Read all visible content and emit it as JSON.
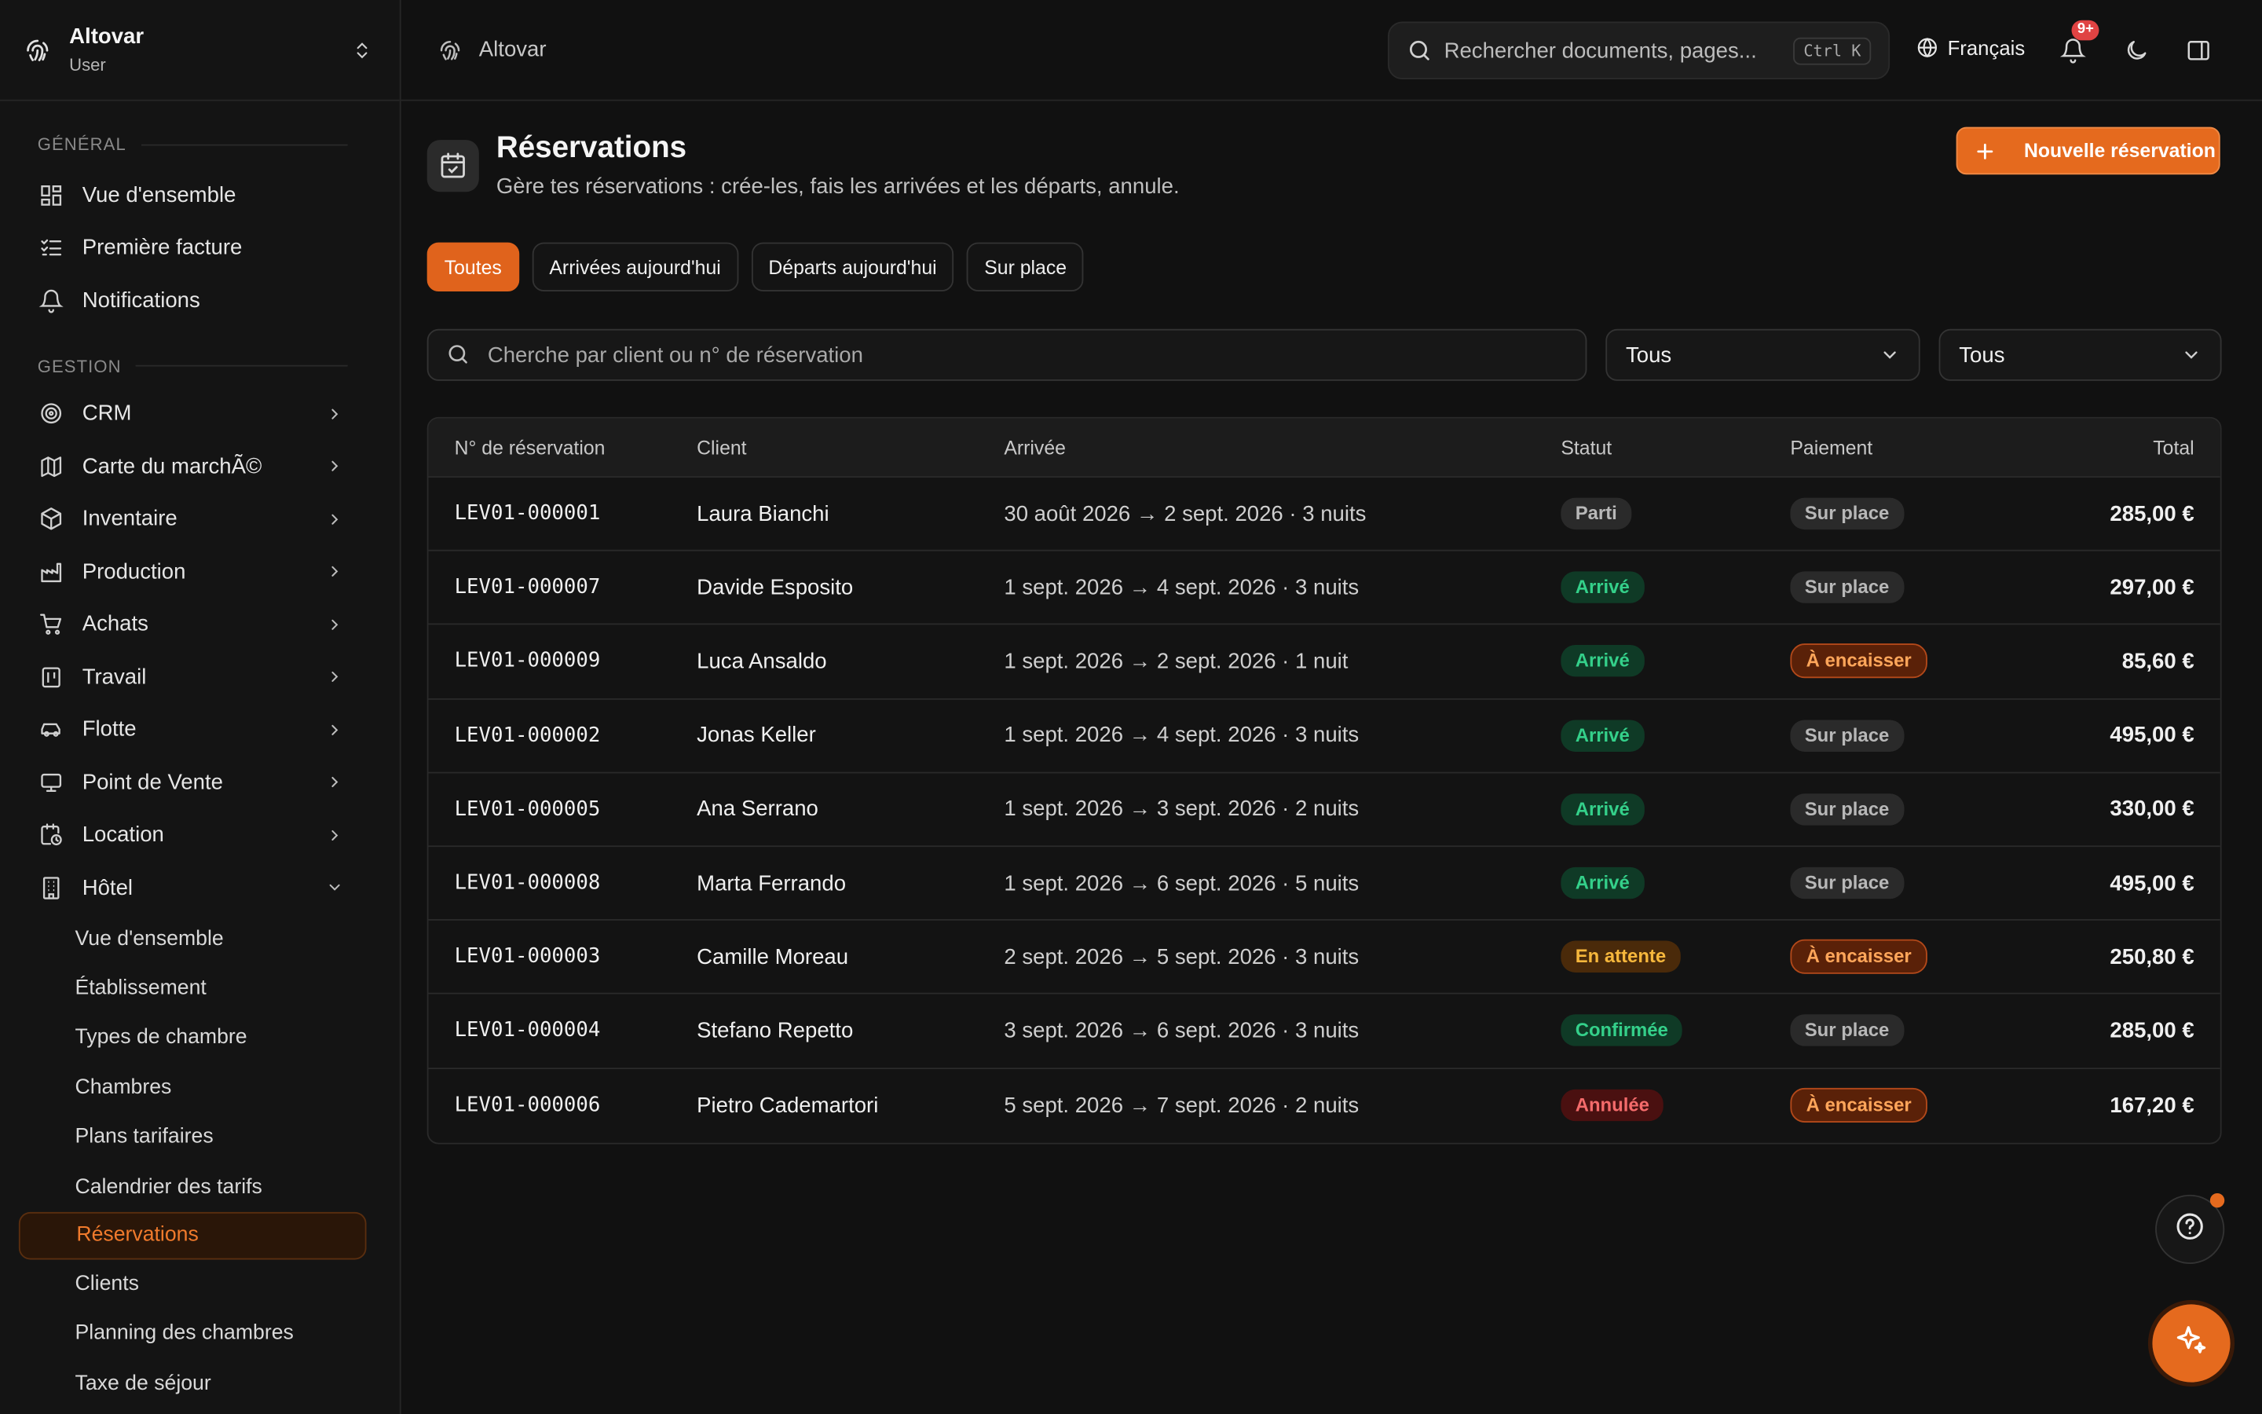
{
  "brand": {
    "name": "Altovar",
    "role": "User"
  },
  "sidebar": {
    "general_label": "GÉNÉRAL",
    "general_items": [
      {
        "label": "Vue d'ensemble",
        "icon": "dashboard-icon"
      },
      {
        "label": "Première facture",
        "icon": "checklist-icon"
      },
      {
        "label": "Notifications",
        "icon": "bell-icon"
      }
    ],
    "gestion_label": "GESTION",
    "gestion_items": [
      {
        "label": "CRM",
        "icon": "target-icon"
      },
      {
        "label": "Carte du marchÃ©",
        "icon": "map-icon"
      },
      {
        "label": "Inventaire",
        "icon": "box-icon"
      },
      {
        "label": "Production",
        "icon": "factory-icon"
      },
      {
        "label": "Achats",
        "icon": "cart-icon"
      },
      {
        "label": "Travail",
        "icon": "calendar-icon"
      },
      {
        "label": "Flotte",
        "icon": "car-icon"
      },
      {
        "label": "Point de Vente",
        "icon": "monitor-icon"
      },
      {
        "label": "Location",
        "icon": "calendar-clock-icon"
      },
      {
        "label": "Hôtel",
        "icon": "building-icon"
      }
    ],
    "hotel_items": [
      "Vue d'ensemble",
      "Établissement",
      "Types de chambre",
      "Chambres",
      "Plans tarifaires",
      "Calendrier des tarifs",
      "Réservations",
      "Clients",
      "Planning des chambres",
      "Taxe de séjour"
    ]
  },
  "topbar": {
    "crumb": "Altovar",
    "search_placeholder": "Rechercher documents, pages...",
    "shortcut": "Ctrl K",
    "language": "Français",
    "notif_count": "9+"
  },
  "page": {
    "title": "Réservations",
    "subtitle": "Gère tes réservations : crée-les, fais les arrivées et les départs, annule.",
    "new_button": "Nouvelle réservation"
  },
  "tabs": [
    "Toutes",
    "Arrivées aujourd'hui",
    "Départs aujourd'hui",
    "Sur place"
  ],
  "filters": {
    "search_placeholder": "Cherche par client ou n° de réservation",
    "status_value": "Tous",
    "payment_value": "Tous"
  },
  "table": {
    "headers": [
      "N° de réservation",
      "Client",
      "Arrivée",
      "Statut",
      "Paiement",
      "Total"
    ],
    "rows": [
      {
        "id": "LEV01-000001",
        "client": "Laura Bianchi",
        "stay": "30 août 2026 → 2 sept. 2026 · 3 nuits",
        "status": "Parti",
        "status_tone": "gray",
        "payment": "Sur place",
        "payment_tone": "gray",
        "total": "285,00 €"
      },
      {
        "id": "LEV01-000007",
        "client": "Davide Esposito",
        "stay": "1 sept. 2026 → 4 sept. 2026 · 3 nuits",
        "status": "Arrivé",
        "status_tone": "green",
        "payment": "Sur place",
        "payment_tone": "gray",
        "total": "297,00 €"
      },
      {
        "id": "LEV01-000009",
        "client": "Luca Ansaldo",
        "stay": "1 sept. 2026 → 2 sept. 2026 · 1 nuit",
        "status": "Arrivé",
        "status_tone": "green",
        "payment": "À encaisser",
        "payment_tone": "orange",
        "total": "85,60 €"
      },
      {
        "id": "LEV01-000002",
        "client": "Jonas Keller",
        "stay": "1 sept. 2026 → 4 sept. 2026 · 3 nuits",
        "status": "Arrivé",
        "status_tone": "green",
        "payment": "Sur place",
        "payment_tone": "gray",
        "total": "495,00 €"
      },
      {
        "id": "LEV01-000005",
        "client": "Ana Serrano",
        "stay": "1 sept. 2026 → 3 sept. 2026 · 2 nuits",
        "status": "Arrivé",
        "status_tone": "green",
        "payment": "Sur place",
        "payment_tone": "gray",
        "total": "330,00 €"
      },
      {
        "id": "LEV01-000008",
        "client": "Marta Ferrando",
        "stay": "1 sept. 2026 → 6 sept. 2026 · 5 nuits",
        "status": "Arrivé",
        "status_tone": "green",
        "payment": "Sur place",
        "payment_tone": "gray",
        "total": "495,00 €"
      },
      {
        "id": "LEV01-000003",
        "client": "Camille Moreau",
        "stay": "2 sept. 2026 → 5 sept. 2026 · 3 nuits",
        "status": "En attente",
        "status_tone": "yellow",
        "payment": "À encaisser",
        "payment_tone": "orange",
        "total": "250,80 €"
      },
      {
        "id": "LEV01-000004",
        "client": "Stefano Repetto",
        "stay": "3 sept. 2026 → 6 sept. 2026 · 3 nuits",
        "status": "Confirmée",
        "status_tone": "green",
        "payment": "Sur place",
        "payment_tone": "gray",
        "total": "285,00 €"
      },
      {
        "id": "LEV01-000006",
        "client": "Pietro Cademartori",
        "stay": "5 sept. 2026 → 7 sept. 2026 · 2 nuits",
        "status": "Annulée",
        "status_tone": "red",
        "payment": "À encaisser",
        "payment_tone": "orange",
        "total": "167,20 €"
      }
    ]
  },
  "colors": {
    "accent": "#e56a1e",
    "background": "#111111"
  }
}
